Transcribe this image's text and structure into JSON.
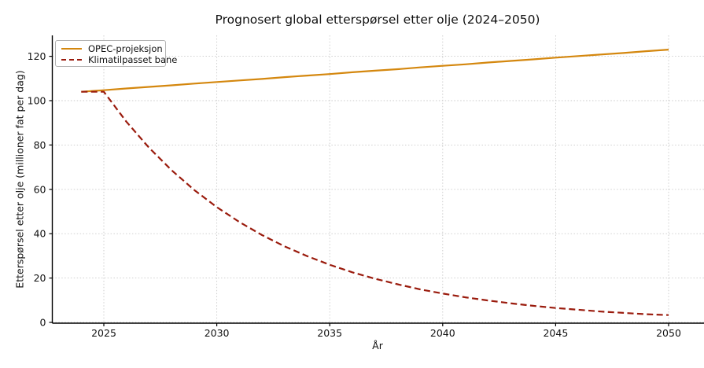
{
  "title": "Prognosert global etterspørsel etter olje (2024–2050)",
  "axes": {
    "xlabel": "År",
    "ylabel": "Etterspørsel etter olje (millioner fat per dag)"
  },
  "colors": {
    "opec_line": "#D4870E",
    "climate_line": "#9A1B0D",
    "grid": "#c9c9c9",
    "spine": "#000000",
    "text": "#111111",
    "legend_border": "#b3b3b3"
  },
  "chart_data": {
    "type": "line",
    "title": "Prognosert global etterspørsel etter olje (2024–2050)",
    "xlabel": "År",
    "ylabel": "Etterspørsel etter olje (millioner fat per dag)",
    "grid": true,
    "grid_style": "dotted",
    "legend_position": "upper left",
    "x_ticks": [
      2025,
      2030,
      2035,
      2040,
      2045,
      2050
    ],
    "y_ticks": [
      0,
      20,
      40,
      60,
      80,
      100,
      120
    ],
    "xlim": [
      2022.7,
      2051.3
    ],
    "ylim": [
      -1,
      129.5
    ],
    "x": [
      2024,
      2025,
      2026,
      2027,
      2028,
      2029,
      2030,
      2031,
      2032,
      2033,
      2034,
      2035,
      2036,
      2037,
      2038,
      2039,
      2040,
      2041,
      2042,
      2043,
      2044,
      2045,
      2046,
      2047,
      2048,
      2049,
      2050
    ],
    "series": [
      {
        "name": "OPEC-projeksjon",
        "color": "#D4870E",
        "line_style": "solid",
        "values": [
          104.0,
          104.7,
          105.5,
          106.2,
          106.9,
          107.7,
          108.4,
          109.1,
          109.8,
          110.6,
          111.3,
          112.0,
          112.8,
          113.5,
          114.2,
          115.0,
          115.7,
          116.4,
          117.2,
          117.9,
          118.6,
          119.4,
          120.1,
          120.8,
          121.5,
          122.3,
          123.0
        ]
      },
      {
        "name": "Klimatilpasset bane",
        "color": "#9A1B0D",
        "line_style": "dashed",
        "values": [
          104.0,
          104.0,
          90.5,
          78.8,
          68.6,
          59.7,
          52.0,
          45.3,
          39.4,
          34.3,
          29.9,
          26.0,
          22.6,
          19.7,
          17.2,
          14.9,
          13.0,
          11.3,
          9.9,
          8.6,
          7.5,
          6.5,
          5.7,
          4.9,
          4.3,
          3.7,
          3.3
        ]
      }
    ]
  }
}
